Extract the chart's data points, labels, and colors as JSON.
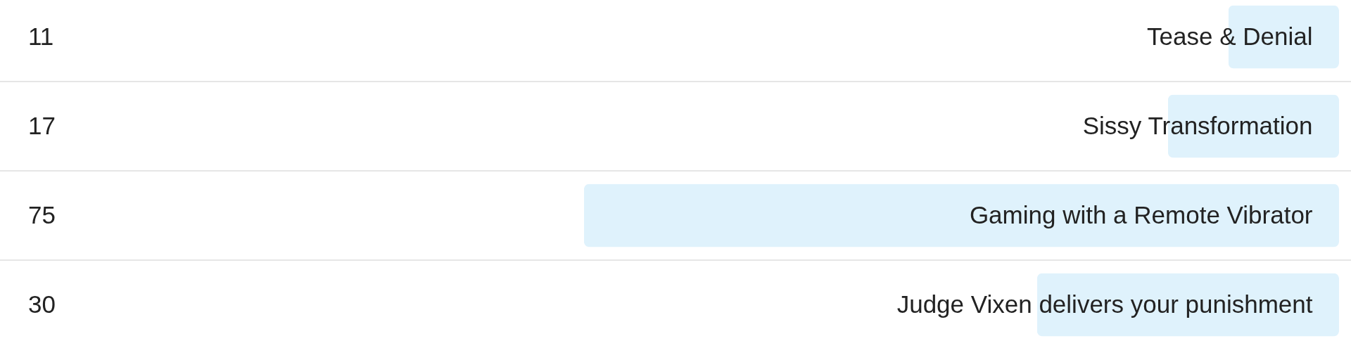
{
  "chart_data": {
    "type": "bar",
    "orientation": "horizontal",
    "categories": [
      "Tease & Denial",
      "Sissy Transformation",
      "Gaming with a Remote Vibrator",
      "Judge Vixen delivers your punishment"
    ],
    "values": [
      11,
      17,
      75,
      30
    ],
    "color": "#dff2fc",
    "data_labels": true,
    "grid": "y"
  }
}
